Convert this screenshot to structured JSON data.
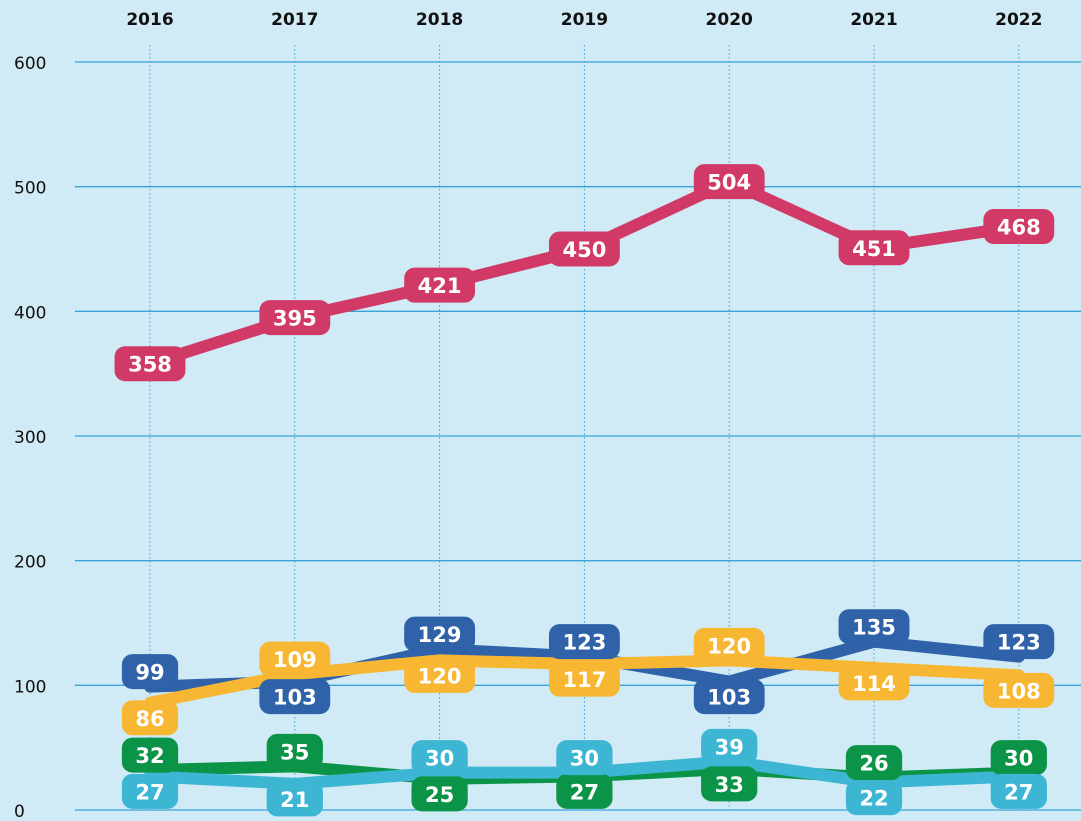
{
  "chart_data": {
    "type": "line",
    "categories": [
      "2016",
      "2017",
      "2018",
      "2019",
      "2020",
      "2021",
      "2022"
    ],
    "series": [
      {
        "color": "#d13a66",
        "values": [
          358,
          395,
          421,
          450,
          504,
          451,
          468
        ]
      },
      {
        "color": "#2f62a8",
        "values": [
          99,
          103,
          129,
          123,
          103,
          135,
          123
        ]
      },
      {
        "color": "#f8b733",
        "values": [
          86,
          109,
          120,
          117,
          120,
          114,
          108
        ]
      },
      {
        "color": "#0b9447",
        "values": [
          32,
          35,
          25,
          27,
          33,
          26,
          30
        ]
      },
      {
        "color": "#3db6d4",
        "values": [
          27,
          21,
          30,
          30,
          39,
          22,
          27
        ]
      }
    ],
    "ylim": [
      0,
      600
    ],
    "yticks": [
      0,
      100,
      200,
      300,
      400,
      500,
      600
    ],
    "grid": true
  }
}
